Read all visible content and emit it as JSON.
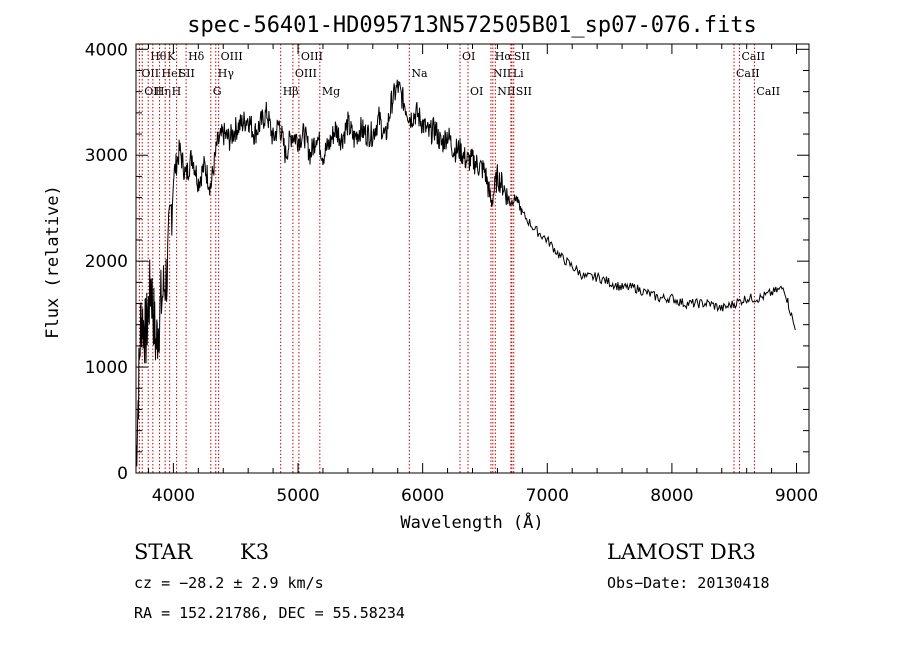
{
  "chart_data": {
    "type": "line",
    "title": "spec-56401-HD095713N572505B01_sp07-076.fits",
    "xlabel": "Wavelength (Å)",
    "ylabel": "Flux (relative)",
    "xlim": [
      3700,
      9100
    ],
    "ylim": [
      0,
      4050
    ],
    "xticks": [
      4000,
      5000,
      6000,
      7000,
      8000,
      9000
    ],
    "yticks": [
      0,
      1000,
      2000,
      3000,
      4000
    ],
    "series": [
      {
        "name": "flux",
        "x": [
          3700,
          3740,
          3780,
          3820,
          3860,
          3900,
          3950,
          4000,
          4050,
          4100,
          4150,
          4200,
          4250,
          4300,
          4350,
          4400,
          4450,
          4500,
          4550,
          4600,
          4650,
          4700,
          4750,
          4800,
          4850,
          4900,
          4950,
          5000,
          5050,
          5100,
          5150,
          5200,
          5250,
          5300,
          5350,
          5400,
          5450,
          5500,
          5550,
          5600,
          5650,
          5700,
          5750,
          5800,
          5850,
          5900,
          5950,
          6000,
          6050,
          6100,
          6150,
          6200,
          6250,
          6300,
          6350,
          6400,
          6450,
          6500,
          6550,
          6600,
          6650,
          6700,
          6750,
          6800,
          6900,
          7000,
          7100,
          7200,
          7300,
          7400,
          7500,
          7600,
          7700,
          7800,
          7900,
          8000,
          8100,
          8200,
          8300,
          8400,
          8500,
          8600,
          8700,
          8800,
          8900,
          8990
        ],
        "values": [
          100,
          1500,
          1300,
          1800,
          1200,
          1600,
          1900,
          2800,
          3050,
          2800,
          3000,
          2750,
          2900,
          2700,
          3100,
          3200,
          3150,
          3250,
          3300,
          3350,
          3200,
          3300,
          3400,
          3150,
          3300,
          3000,
          3200,
          3150,
          3200,
          3000,
          3200,
          3000,
          3100,
          3250,
          3150,
          3300,
          3150,
          3250,
          3200,
          3200,
          3350,
          3150,
          3500,
          3650,
          3500,
          3350,
          3400,
          3300,
          3200,
          3250,
          3100,
          3200,
          3050,
          3050,
          2950,
          2950,
          2900,
          2850,
          2550,
          2800,
          2700,
          2550,
          2600,
          2450,
          2300,
          2200,
          2050,
          1950,
          1850,
          1850,
          1800,
          1750,
          1750,
          1700,
          1650,
          1650,
          1600,
          1600,
          1600,
          1550,
          1600,
          1650,
          1650,
          1700,
          1750,
          1350
        ]
      }
    ],
    "lines": [
      {
        "wl": 3727,
        "label": "OII",
        "row": 2
      },
      {
        "wl": 3750,
        "label": "OII",
        "row": 3
      },
      {
        "wl": 3798,
        "label": "Hθ",
        "row": 1
      },
      {
        "wl": 3835,
        "label": "Hη",
        "row": 3
      },
      {
        "wl": 3889,
        "label": "HeI",
        "row": 2
      },
      {
        "wl": 3934,
        "label": "K",
        "row": 1
      },
      {
        "wl": 3970,
        "label": "H",
        "row": 3
      },
      {
        "wl": 4026,
        "label": "SII",
        "row": 2
      },
      {
        "wl": 4102,
        "label": "Hδ",
        "row": 1
      },
      {
        "wl": 4300,
        "label": "G",
        "row": 3
      },
      {
        "wl": 4340,
        "label": "Hγ",
        "row": 2
      },
      {
        "wl": 4363,
        "label": "OIII",
        "row": 1
      },
      {
        "wl": 4861,
        "label": "Hβ",
        "row": 3
      },
      {
        "wl": 4959,
        "label": "OIII",
        "row": 2
      },
      {
        "wl": 5007,
        "label": "OIII",
        "row": 1
      },
      {
        "wl": 5175,
        "label": "Mg",
        "row": 3
      },
      {
        "wl": 5893,
        "label": "Na",
        "row": 2
      },
      {
        "wl": 6300,
        "label": "OI",
        "row": 1
      },
      {
        "wl": 6364,
        "label": "OI",
        "row": 3
      },
      {
        "wl": 6548,
        "label": "NII",
        "row": 2
      },
      {
        "wl": 6563,
        "label": "Hα",
        "row": 1
      },
      {
        "wl": 6583,
        "label": "NII",
        "row": 3
      },
      {
        "wl": 6708,
        "label": "Li",
        "row": 2
      },
      {
        "wl": 6716,
        "label": "SII",
        "row": 1
      },
      {
        "wl": 6731,
        "label": "SII",
        "row": 3
      },
      {
        "wl": 8498,
        "label": "CaII",
        "row": 2
      },
      {
        "wl": 8542,
        "label": "CaII",
        "row": 1
      },
      {
        "wl": 8662,
        "label": "CaII",
        "row": 3
      }
    ],
    "colors": {
      "spectrum": "#000000",
      "line_markers": "#cc0000",
      "axes": "#000000"
    }
  },
  "info": {
    "object_class": "STAR",
    "subclass": "K3",
    "survey": "LAMOST DR3",
    "cz": "cz = −28.2 ± 2.9 km/s",
    "obs_date": "Obs−Date: 20130418",
    "coords": "RA = 152.21786, DEC =  55.58234"
  }
}
